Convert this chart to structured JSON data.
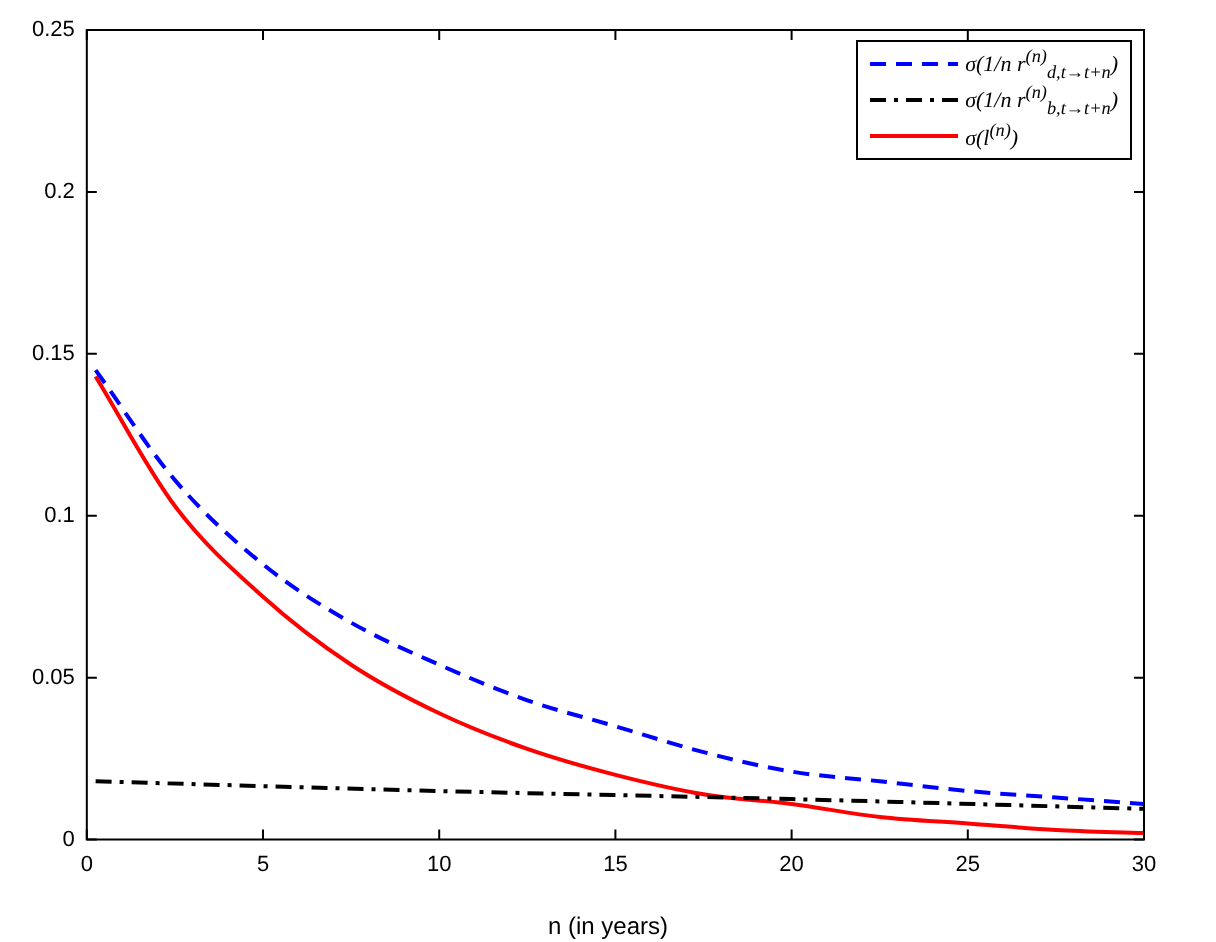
{
  "chart_data": {
    "type": "line",
    "xlabel": "n (in years)",
    "xlim": [
      0,
      30
    ],
    "xticks": [
      0,
      5,
      10,
      15,
      20,
      25,
      30
    ],
    "ylim": [
      0,
      0.25
    ],
    "yticks": [
      0,
      0.05,
      0.1,
      0.15,
      0.2,
      0.25
    ],
    "grid": false,
    "legend": "top right",
    "marker": "none",
    "series": [
      {
        "name": "σ(1/n r$^{(n)}$$_{d,t→t+n}$)",
        "color": "#0000ff",
        "line_style": "dashed",
        "x": [
          0.25,
          2.5,
          5,
          7.5,
          10,
          12.5,
          15,
          17.5,
          20,
          22.5,
          25,
          27.5,
          30
        ],
        "values": [
          0.145,
          0.111,
          0.085,
          0.067,
          0.054,
          0.043,
          0.035,
          0.027,
          0.021,
          0.018,
          0.015,
          0.013,
          0.011
        ]
      },
      {
        "name": "σ(1/n r$^{(n)}$$_{b,t→t+n}$)",
        "color": "#000000",
        "line_style": "dashdot",
        "x": [
          0.25,
          10,
          20,
          30
        ],
        "values": [
          0.018,
          0.015,
          0.0125,
          0.0095
        ]
      },
      {
        "name": "σ(l$^{(n)}$)",
        "color": "#ff0000",
        "line_style": "solid",
        "x": [
          0.25,
          2.5,
          5,
          7.5,
          10,
          12.5,
          15,
          17.5,
          20,
          22.5,
          25,
          27.5,
          30
        ],
        "values": [
          0.143,
          0.103,
          0.075,
          0.054,
          0.039,
          0.028,
          0.02,
          0.014,
          0.011,
          0.007,
          0.005,
          0.003,
          0.002
        ]
      }
    ]
  }
}
